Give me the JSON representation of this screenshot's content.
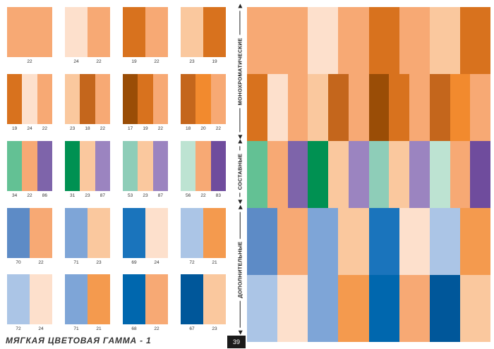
{
  "colors": {
    "17": "#9a4d06",
    "18": "#c4661c",
    "19": "#d8721e",
    "20": "#f28a2e",
    "21": "#f49a4e",
    "22": "#f7a974",
    "23": "#fac89e",
    "24": "#fde0cc",
    "31": "#009152",
    "34": "#63c194",
    "51": "#00955a",
    "53": "#8ecdb8",
    "56": "#bde3d2",
    "67": "#00579a",
    "68": "#0067ae",
    "69": "#1a74bc",
    "70": "#5d8bc6",
    "71": "#7ea5d7",
    "72": "#abc5e6",
    "83": "#6f4c9d",
    "86": "#7e64aa",
    "87": "#9b84c0"
  },
  "swatches": [
    {
      "codes": [
        "22"
      ],
      "labels": [
        "22"
      ]
    },
    {
      "codes": [
        "24",
        "22"
      ],
      "labels": [
        "24",
        "22"
      ]
    },
    {
      "codes": [
        "19",
        "22"
      ],
      "labels": [
        "19",
        "22"
      ]
    },
    {
      "codes": [
        "23",
        "19"
      ],
      "labels": [
        "23",
        "19"
      ]
    },
    {
      "codes": [
        "19",
        "24",
        "22"
      ],
      "labels": [
        "19",
        "24",
        "22"
      ]
    },
    {
      "codes": [
        "23",
        "18",
        "22"
      ],
      "labels": [
        "23",
        "18",
        "22"
      ]
    },
    {
      "codes": [
        "17",
        "19",
        "22"
      ],
      "labels": [
        "17",
        "19",
        "22"
      ]
    },
    {
      "codes": [
        "18",
        "20",
        "22"
      ],
      "labels": [
        "18",
        "20",
        "22"
      ]
    },
    {
      "codes": [
        "34",
        "22",
        "86"
      ],
      "labels": [
        "34",
        "22",
        "86"
      ]
    },
    {
      "codes": [
        "31",
        "23",
        "87"
      ],
      "labels": [
        "31",
        "23",
        "87"
      ]
    },
    {
      "codes": [
        "53",
        "23",
        "87"
      ],
      "labels": [
        "53",
        "23",
        "87"
      ]
    },
    {
      "codes": [
        "56",
        "22",
        "83"
      ],
      "labels": [
        "56",
        "22",
        "83"
      ]
    },
    {
      "codes": [
        "70",
        "22"
      ],
      "labels": [
        "70",
        "22"
      ]
    },
    {
      "codes": [
        "71",
        "23"
      ],
      "labels": [
        "71",
        "23"
      ]
    },
    {
      "codes": [
        "69",
        "24"
      ],
      "labels": [
        "69",
        "24"
      ]
    },
    {
      "codes": [
        "72",
        "21"
      ],
      "labels": [
        "72",
        "21"
      ]
    },
    {
      "codes": [
        "72",
        "24"
      ],
      "labels": [
        "72",
        "24"
      ]
    },
    {
      "codes": [
        "71",
        "21"
      ],
      "labels": [
        "71",
        "21"
      ]
    },
    {
      "codes": [
        "68",
        "22"
      ],
      "labels": [
        "68",
        "22"
      ]
    },
    {
      "codes": [
        "67",
        "23"
      ],
      "labels": [
        "67",
        "23"
      ]
    }
  ],
  "sections": [
    "МОНОХРОМАТИЧЕСКИЕ",
    "СОСТАВНЫЕ",
    "ДОПОЛНИТЕЛЬНЫЕ"
  ],
  "panel_rows": [
    [
      "22",
      "22",
      "24",
      "22",
      "19",
      "22",
      "23",
      "19"
    ],
    [
      "19",
      "24",
      "22",
      "23",
      "18",
      "22",
      "17",
      "19",
      "22",
      "18",
      "20",
      "22"
    ],
    [
      "34",
      "22",
      "86",
      "31",
      "23",
      "87",
      "53",
      "23",
      "87",
      "56",
      "22",
      "83"
    ],
    [
      "70",
      "22",
      "71",
      "23",
      "69",
      "24",
      "72",
      "21"
    ],
    [
      "72",
      "24",
      "71",
      "21",
      "68",
      "22",
      "67",
      "23"
    ]
  ],
  "footer": {
    "title": "МЯГКАЯ ЦВЕТОВАЯ ГАММА - 1",
    "page_number": "39"
  }
}
